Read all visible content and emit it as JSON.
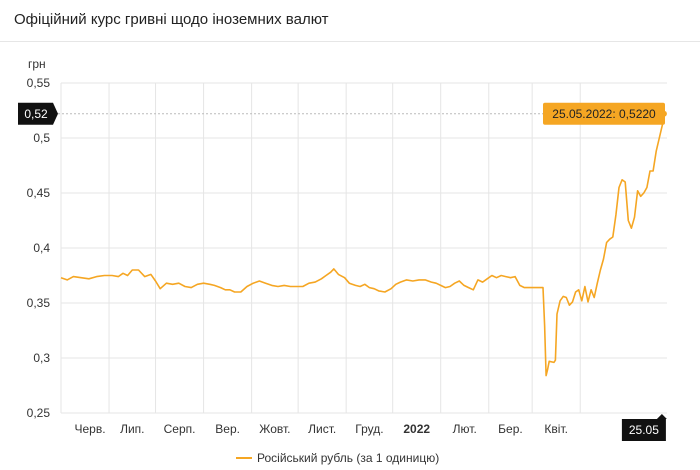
{
  "header": {
    "title": "Офіційний курс гривні щодо іноземних валют"
  },
  "colors": {
    "series": "#f5a623",
    "tooltip_bg": "#f5a623",
    "flag_bg": "#111111",
    "grid": "#e5e5e5"
  },
  "chart_data": {
    "type": "line",
    "title": "Офіційний курс гривні щодо іноземних валют",
    "ylabel": "грн",
    "ylim": [
      0.25,
      0.55
    ],
    "yticks": [
      0.25,
      0.3,
      0.35,
      0.4,
      0.45,
      0.5,
      0.55
    ],
    "ytick_labels": [
      "0,25",
      "0,3",
      "0,35",
      "0,4",
      "0,45",
      "0,5",
      "0,55"
    ],
    "xlim": [
      "2021-05-01",
      "2022-05-27"
    ],
    "xticks": [
      {
        "date": "2021-06-01",
        "label": "Черв."
      },
      {
        "date": "2021-07-01",
        "label": "Лип."
      },
      {
        "date": "2021-08-01",
        "label": "Серп."
      },
      {
        "date": "2021-09-01",
        "label": "Вер."
      },
      {
        "date": "2021-10-01",
        "label": "Жовт."
      },
      {
        "date": "2021-11-01",
        "label": "Лист."
      },
      {
        "date": "2021-12-01",
        "label": "Груд."
      },
      {
        "date": "2022-01-01",
        "label": "2022",
        "bold": true
      },
      {
        "date": "2022-02-01",
        "label": "Лют."
      },
      {
        "date": "2022-03-01",
        "label": "Бер."
      },
      {
        "date": "2022-04-01",
        "label": "Квіт."
      }
    ],
    "grid": true,
    "legend": "bottom-center",
    "crosshair": {
      "y_label": "0,52",
      "x_label": "25.05"
    },
    "tooltip": "25.05.2022: 0,5220",
    "series": [
      {
        "name": "Російський рубль (за 1 одиницю)",
        "color": "#f5a623",
        "points": [
          [
            "2021-05-01",
            0.373
          ],
          [
            "2021-05-05",
            0.371
          ],
          [
            "2021-05-09",
            0.374
          ],
          [
            "2021-05-14",
            0.373
          ],
          [
            "2021-05-19",
            0.372
          ],
          [
            "2021-05-24",
            0.374
          ],
          [
            "2021-05-29",
            0.375
          ],
          [
            "2021-06-03",
            0.375
          ],
          [
            "2021-06-07",
            0.374
          ],
          [
            "2021-06-10",
            0.377
          ],
          [
            "2021-06-13",
            0.375
          ],
          [
            "2021-06-16",
            0.38
          ],
          [
            "2021-06-20",
            0.38
          ],
          [
            "2021-06-24",
            0.374
          ],
          [
            "2021-06-28",
            0.376
          ],
          [
            "2021-07-01",
            0.37
          ],
          [
            "2021-07-04",
            0.363
          ],
          [
            "2021-07-08",
            0.368
          ],
          [
            "2021-07-12",
            0.367
          ],
          [
            "2021-07-16",
            0.368
          ],
          [
            "2021-07-20",
            0.365
          ],
          [
            "2021-07-24",
            0.364
          ],
          [
            "2021-07-28",
            0.367
          ],
          [
            "2021-08-01",
            0.368
          ],
          [
            "2021-08-05",
            0.367
          ],
          [
            "2021-08-08",
            0.366
          ],
          [
            "2021-08-12",
            0.364
          ],
          [
            "2021-08-15",
            0.362
          ],
          [
            "2021-08-18",
            0.362
          ],
          [
            "2021-08-21",
            0.36
          ],
          [
            "2021-08-25",
            0.36
          ],
          [
            "2021-08-29",
            0.365
          ],
          [
            "2021-09-02",
            0.368
          ],
          [
            "2021-09-06",
            0.37
          ],
          [
            "2021-09-10",
            0.368
          ],
          [
            "2021-09-14",
            0.366
          ],
          [
            "2021-09-18",
            0.365
          ],
          [
            "2021-09-22",
            0.366
          ],
          [
            "2021-09-26",
            0.365
          ],
          [
            "2021-09-30",
            0.365
          ],
          [
            "2021-10-04",
            0.365
          ],
          [
            "2021-10-08",
            0.368
          ],
          [
            "2021-10-12",
            0.369
          ],
          [
            "2021-10-16",
            0.372
          ],
          [
            "2021-10-19",
            0.375
          ],
          [
            "2021-10-22",
            0.378
          ],
          [
            "2021-10-24",
            0.381
          ],
          [
            "2021-10-27",
            0.376
          ],
          [
            "2021-10-31",
            0.373
          ],
          [
            "2021-11-03",
            0.368
          ],
          [
            "2021-11-07",
            0.366
          ],
          [
            "2021-11-10",
            0.365
          ],
          [
            "2021-11-13",
            0.367
          ],
          [
            "2021-11-16",
            0.364
          ],
          [
            "2021-11-19",
            0.363
          ],
          [
            "2021-11-22",
            0.361
          ],
          [
            "2021-11-26",
            0.36
          ],
          [
            "2021-11-30",
            0.363
          ],
          [
            "2021-12-03",
            0.367
          ],
          [
            "2021-12-06",
            0.369
          ],
          [
            "2021-12-10",
            0.371
          ],
          [
            "2021-12-14",
            0.37
          ],
          [
            "2021-12-18",
            0.371
          ],
          [
            "2021-12-22",
            0.371
          ],
          [
            "2021-12-26",
            0.369
          ],
          [
            "2021-12-29",
            0.368
          ],
          [
            "2022-01-01",
            0.366
          ],
          [
            "2022-01-04",
            0.364
          ],
          [
            "2022-01-07",
            0.365
          ],
          [
            "2022-01-10",
            0.368
          ],
          [
            "2022-01-13",
            0.37
          ],
          [
            "2022-01-16",
            0.366
          ],
          [
            "2022-01-19",
            0.364
          ],
          [
            "2022-01-22",
            0.362
          ],
          [
            "2022-01-25",
            0.371
          ],
          [
            "2022-01-28",
            0.369
          ],
          [
            "2022-01-31",
            0.372
          ],
          [
            "2022-02-03",
            0.375
          ],
          [
            "2022-02-06",
            0.373
          ],
          [
            "2022-02-09",
            0.375
          ],
          [
            "2022-02-12",
            0.374
          ],
          [
            "2022-02-15",
            0.373
          ],
          [
            "2022-02-18",
            0.374
          ],
          [
            "2022-02-21",
            0.366
          ],
          [
            "2022-02-24",
            0.364
          ],
          [
            "2022-03-01",
            0.364
          ],
          [
            "2022-03-05",
            0.364
          ],
          [
            "2022-03-08",
            0.364
          ],
          [
            "2022-03-09",
            0.33
          ],
          [
            "2022-03-10",
            0.284
          ],
          [
            "2022-03-11",
            0.29
          ],
          [
            "2022-03-12",
            0.297
          ],
          [
            "2022-03-15",
            0.296
          ],
          [
            "2022-03-16",
            0.298
          ],
          [
            "2022-03-17",
            0.34
          ],
          [
            "2022-03-19",
            0.352
          ],
          [
            "2022-03-21",
            0.356
          ],
          [
            "2022-03-23",
            0.355
          ],
          [
            "2022-03-25",
            0.348
          ],
          [
            "2022-03-27",
            0.351
          ],
          [
            "2022-03-29",
            0.36
          ],
          [
            "2022-03-31",
            0.362
          ],
          [
            "2022-04-02",
            0.352
          ],
          [
            "2022-04-04",
            0.365
          ],
          [
            "2022-04-06",
            0.351
          ],
          [
            "2022-04-08",
            0.362
          ],
          [
            "2022-04-10",
            0.355
          ],
          [
            "2022-04-12",
            0.368
          ],
          [
            "2022-04-14",
            0.38
          ],
          [
            "2022-04-16",
            0.39
          ],
          [
            "2022-04-18",
            0.405
          ],
          [
            "2022-04-20",
            0.408
          ],
          [
            "2022-04-22",
            0.41
          ],
          [
            "2022-04-24",
            0.43
          ],
          [
            "2022-04-26",
            0.455
          ],
          [
            "2022-04-28",
            0.462
          ],
          [
            "2022-04-30",
            0.46
          ],
          [
            "2022-05-02",
            0.425
          ],
          [
            "2022-05-04",
            0.418
          ],
          [
            "2022-05-06",
            0.428
          ],
          [
            "2022-05-08",
            0.452
          ],
          [
            "2022-05-10",
            0.447
          ],
          [
            "2022-05-12",
            0.45
          ],
          [
            "2022-05-14",
            0.455
          ],
          [
            "2022-05-16",
            0.47
          ],
          [
            "2022-05-18",
            0.47
          ],
          [
            "2022-05-20",
            0.488
          ],
          [
            "2022-05-22",
            0.5
          ],
          [
            "2022-05-24",
            0.512
          ],
          [
            "2022-05-25",
            0.522
          ]
        ]
      }
    ]
  }
}
